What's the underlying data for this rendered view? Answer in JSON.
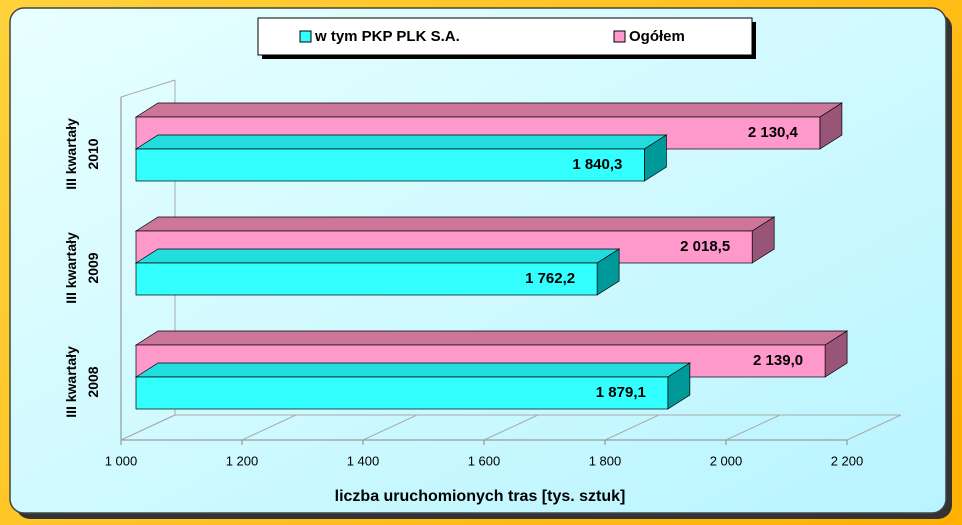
{
  "chart_data": {
    "type": "bar3d_horizontal",
    "categories": [
      "III kwartały\n2008",
      "III kwartały\n2009",
      "III kwartały\n2010"
    ],
    "series": [
      {
        "name": "w tym PKP PLK S.A.",
        "color": "#33ffff",
        "values": [
          1879.1,
          1762.2,
          1840.3
        ],
        "value_labels": [
          "1 879,1",
          "1 762,2",
          "1 840,3"
        ]
      },
      {
        "name": "Ogółem",
        "color": "#ff99cc",
        "values": [
          2139.0,
          2018.5,
          2130.4
        ],
        "value_labels": [
          "2 139,0",
          "2 018,5",
          "2 130,4"
        ]
      }
    ],
    "xlim": [
      1000,
      2200
    ],
    "xticks": [
      {
        "value": 1000,
        "label": "1 000"
      },
      {
        "value": 1200,
        "label": "1 200"
      },
      {
        "value": 1400,
        "label": "1 400"
      },
      {
        "value": 1600,
        "label": "1 600"
      },
      {
        "value": 1800,
        "label": "1 800"
      },
      {
        "value": 2000,
        "label": "2 000"
      },
      {
        "value": 2200,
        "label": "2 200"
      }
    ],
    "xlabel": "liczba uruchomionych tras [tys. sztuk]",
    "legend": "top"
  }
}
